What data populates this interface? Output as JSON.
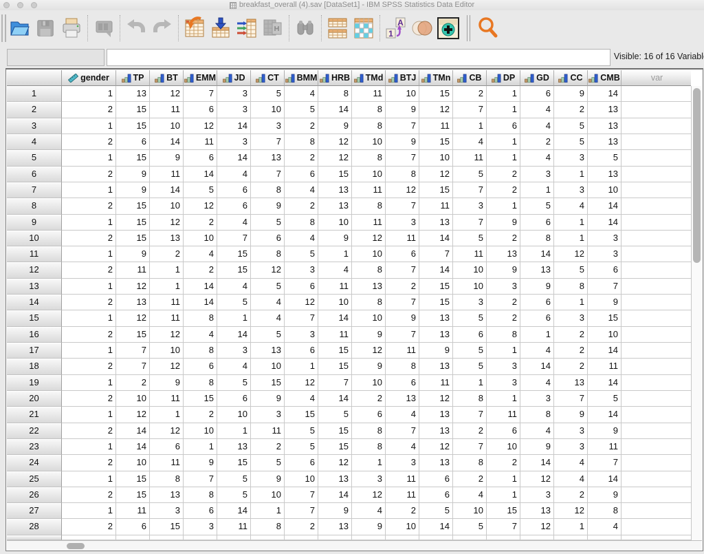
{
  "window": {
    "title": "breakfast_overall (4).sav [DataSet1] - IBM SPSS Statistics Data Editor"
  },
  "toolbar": {
    "buttons": [
      "open-data",
      "save",
      "print",
      "recall-dialogs",
      "undo",
      "redo",
      "goto-case",
      "goto-variable",
      "variables",
      "variable-info",
      "find",
      "split-file",
      "select-cases",
      "value-labels",
      "use-variable-sets",
      "show-all-variables",
      "search"
    ]
  },
  "refbar": {
    "case_ref": "",
    "cell_editor": "",
    "visible_label": "Visible: 16 of 16 Variable"
  },
  "grid": {
    "var_column_label": "var",
    "columns": [
      {
        "label": "gender",
        "measure": "scale"
      },
      {
        "label": "TP",
        "measure": "ordinal"
      },
      {
        "label": "BT",
        "measure": "ordinal"
      },
      {
        "label": "EMM",
        "measure": "ordinal"
      },
      {
        "label": "JD",
        "measure": "ordinal"
      },
      {
        "label": "CT",
        "measure": "ordinal"
      },
      {
        "label": "BMM",
        "measure": "ordinal"
      },
      {
        "label": "HRB",
        "measure": "ordinal"
      },
      {
        "label": "TMd",
        "measure": "ordinal"
      },
      {
        "label": "BTJ",
        "measure": "ordinal"
      },
      {
        "label": "TMn",
        "measure": "ordinal"
      },
      {
        "label": "CB",
        "measure": "ordinal"
      },
      {
        "label": "DP",
        "measure": "ordinal"
      },
      {
        "label": "GD",
        "measure": "ordinal"
      },
      {
        "label": "CC",
        "measure": "ordinal"
      },
      {
        "label": "CMB",
        "measure": "ordinal"
      }
    ],
    "rows": [
      {
        "n": "1",
        "values": [
          1,
          13,
          12,
          7,
          3,
          5,
          4,
          8,
          11,
          10,
          15,
          2,
          1,
          6,
          9,
          14
        ]
      },
      {
        "n": "2",
        "values": [
          2,
          15,
          11,
          6,
          3,
          10,
          5,
          14,
          8,
          9,
          12,
          7,
          1,
          4,
          2,
          13
        ]
      },
      {
        "n": "3",
        "values": [
          1,
          15,
          10,
          12,
          14,
          3,
          2,
          9,
          8,
          7,
          11,
          1,
          6,
          4,
          5,
          13
        ]
      },
      {
        "n": "4",
        "values": [
          2,
          6,
          14,
          11,
          3,
          7,
          8,
          12,
          10,
          9,
          15,
          4,
          1,
          2,
          5,
          13
        ]
      },
      {
        "n": "5",
        "values": [
          1,
          15,
          9,
          6,
          14,
          13,
          2,
          12,
          8,
          7,
          10,
          11,
          1,
          4,
          3,
          5
        ]
      },
      {
        "n": "6",
        "values": [
          2,
          9,
          11,
          14,
          4,
          7,
          6,
          15,
          10,
          8,
          12,
          5,
          2,
          3,
          1,
          13
        ]
      },
      {
        "n": "7",
        "values": [
          1,
          9,
          14,
          5,
          6,
          8,
          4,
          13,
          11,
          12,
          15,
          7,
          2,
          1,
          3,
          10
        ]
      },
      {
        "n": "8",
        "values": [
          2,
          15,
          10,
          12,
          6,
          9,
          2,
          13,
          8,
          7,
          11,
          3,
          1,
          5,
          4,
          14
        ]
      },
      {
        "n": "9",
        "values": [
          1,
          15,
          12,
          2,
          4,
          5,
          8,
          10,
          11,
          3,
          13,
          7,
          9,
          6,
          1,
          14
        ]
      },
      {
        "n": "10",
        "values": [
          2,
          15,
          13,
          10,
          7,
          6,
          4,
          9,
          12,
          11,
          14,
          5,
          2,
          8,
          1,
          3
        ]
      },
      {
        "n": "11",
        "values": [
          1,
          9,
          2,
          4,
          15,
          8,
          5,
          1,
          10,
          6,
          7,
          11,
          13,
          14,
          12,
          3
        ]
      },
      {
        "n": "12",
        "values": [
          2,
          11,
          1,
          2,
          15,
          12,
          3,
          4,
          8,
          7,
          14,
          10,
          9,
          13,
          5,
          6
        ]
      },
      {
        "n": "13",
        "values": [
          1,
          12,
          1,
          14,
          4,
          5,
          6,
          11,
          13,
          2,
          15,
          10,
          3,
          9,
          8,
          7
        ]
      },
      {
        "n": "14",
        "values": [
          2,
          13,
          11,
          14,
          5,
          4,
          12,
          10,
          8,
          7,
          15,
          3,
          2,
          6,
          1,
          9
        ]
      },
      {
        "n": "15",
        "values": [
          1,
          12,
          11,
          8,
          1,
          4,
          7,
          14,
          10,
          9,
          13,
          5,
          2,
          6,
          3,
          15
        ]
      },
      {
        "n": "16",
        "values": [
          2,
          15,
          12,
          4,
          14,
          5,
          3,
          11,
          9,
          7,
          13,
          6,
          8,
          1,
          2,
          10
        ]
      },
      {
        "n": "17",
        "values": [
          1,
          7,
          10,
          8,
          3,
          13,
          6,
          15,
          12,
          11,
          9,
          5,
          1,
          4,
          2,
          14
        ]
      },
      {
        "n": "18",
        "values": [
          2,
          7,
          12,
          6,
          4,
          10,
          1,
          15,
          9,
          8,
          13,
          5,
          3,
          14,
          2,
          11
        ]
      },
      {
        "n": "19",
        "values": [
          1,
          2,
          9,
          8,
          5,
          15,
          12,
          7,
          10,
          6,
          11,
          1,
          3,
          4,
          13,
          14
        ]
      },
      {
        "n": "20",
        "values": [
          2,
          10,
          11,
          15,
          6,
          9,
          4,
          14,
          2,
          13,
          12,
          8,
          1,
          3,
          7,
          5
        ]
      },
      {
        "n": "21",
        "values": [
          1,
          12,
          1,
          2,
          10,
          3,
          15,
          5,
          6,
          4,
          13,
          7,
          11,
          8,
          9,
          14
        ]
      },
      {
        "n": "22",
        "values": [
          2,
          14,
          12,
          10,
          1,
          11,
          5,
          15,
          8,
          7,
          13,
          2,
          6,
          4,
          3,
          9
        ]
      },
      {
        "n": "23",
        "values": [
          1,
          14,
          6,
          1,
          13,
          2,
          5,
          15,
          8,
          4,
          12,
          7,
          10,
          9,
          3,
          11
        ]
      },
      {
        "n": "24",
        "values": [
          2,
          10,
          11,
          9,
          15,
          5,
          6,
          12,
          1,
          3,
          13,
          8,
          2,
          14,
          4,
          7
        ]
      },
      {
        "n": "25",
        "values": [
          1,
          15,
          8,
          7,
          5,
          9,
          10,
          13,
          3,
          11,
          6,
          2,
          1,
          12,
          4,
          14
        ]
      },
      {
        "n": "26",
        "values": [
          2,
          15,
          13,
          8,
          5,
          10,
          7,
          14,
          12,
          11,
          6,
          4,
          1,
          3,
          2,
          9
        ]
      },
      {
        "n": "27",
        "values": [
          1,
          11,
          3,
          6,
          14,
          1,
          7,
          9,
          4,
          2,
          5,
          10,
          15,
          13,
          12,
          8
        ]
      },
      {
        "n": "28",
        "values": [
          2,
          6,
          15,
          3,
          11,
          8,
          2,
          13,
          9,
          10,
          14,
          5,
          7,
          12,
          1,
          4
        ]
      }
    ]
  }
}
